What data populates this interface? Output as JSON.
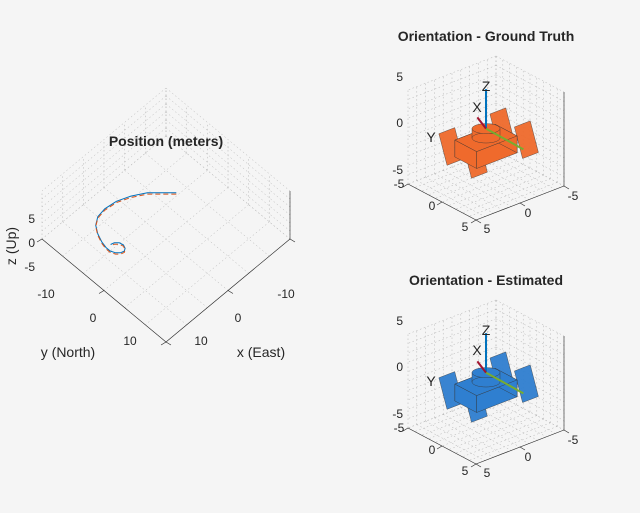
{
  "figure": {
    "background": "#f5f5f5"
  },
  "chart_data": [
    {
      "type": "line",
      "title": "Position (meters)",
      "xlabel": "x (East)",
      "ylabel": "y (North)",
      "zlabel": "z (Up)",
      "x_ticks": [
        "-10",
        "0",
        "10"
      ],
      "y_ticks": [
        "-10",
        "0",
        "10"
      ],
      "z_ticks": [
        "5",
        "0",
        "-5"
      ],
      "xlim": [
        -15,
        15
      ],
      "ylim": [
        -15,
        15
      ],
      "zlim": [
        -5,
        5
      ],
      "grid": true,
      "series": [
        {
          "color": "#0072bd",
          "style": "solid",
          "x": [
            -4.5,
            -3,
            -1,
            1.5,
            4,
            6.5,
            8.5,
            10,
            11,
            11.7,
            12,
            12,
            11.6,
            11,
            10.3,
            9.8,
            9.5,
            9.7,
            10.3,
            11
          ],
          "y": [
            -2,
            -3.5,
            -5.5,
            -7,
            -8,
            -8.3,
            -8,
            -7,
            -5.5,
            -3.8,
            -2.5,
            -1.5,
            -0.6,
            0,
            0.2,
            -0.1,
            -0.8,
            -1.6,
            -2.2,
            -2.4
          ],
          "z": [
            0,
            0,
            0,
            0,
            0,
            0,
            0,
            0,
            0,
            0,
            0,
            0,
            0,
            0,
            0,
            0,
            0,
            0,
            0,
            0
          ]
        },
        {
          "color": "#d95319",
          "style": "dashed",
          "x": [
            -4.3,
            -2.8,
            -0.8,
            1.7,
            4.2,
            6.7,
            8.7,
            10.2,
            11.2,
            11.9,
            12.2,
            12.2,
            11.8,
            11.2,
            10.5,
            10,
            9.7,
            9.9,
            10.5,
            11.2
          ],
          "y": [
            -1.8,
            -3.3,
            -5.3,
            -6.8,
            -7.8,
            -8.1,
            -7.8,
            -6.8,
            -5.3,
            -3.6,
            -2.3,
            -1.3,
            -0.4,
            0.2,
            0.4,
            0.1,
            -0.6,
            -1.4,
            -2,
            -2.2
          ],
          "z": [
            0,
            0,
            0,
            0,
            0,
            0,
            0,
            0,
            0,
            0,
            0,
            0,
            0,
            0,
            0,
            0,
            0,
            0,
            0,
            0
          ]
        }
      ]
    },
    {
      "type": "3d-orientation",
      "title": "Orientation - Ground Truth",
      "body_color": "#ef6a2c",
      "x_ticks": [
        "-5",
        "0",
        "5"
      ],
      "y_ticks": [
        "-5",
        "0",
        "5"
      ],
      "z_ticks": [
        "5",
        "0",
        "-5"
      ],
      "xlim": [
        -5,
        5
      ],
      "ylim": [
        -5,
        5
      ],
      "zlim": [
        -5,
        5
      ],
      "axis_labels": [
        "X",
        "Y",
        "Z"
      ],
      "axis_colors": {
        "X": "#a2142f",
        "Y": "#77ac30",
        "Z": "#0072bd"
      }
    },
    {
      "type": "3d-orientation",
      "title": "Orientation - Estimated",
      "body_color": "#2f7fd0",
      "x_ticks": [
        "-5",
        "0",
        "5"
      ],
      "y_ticks": [
        "-5",
        "0",
        "5"
      ],
      "z_ticks": [
        "5",
        "0",
        "-5"
      ],
      "xlim": [
        -5,
        5
      ],
      "ylim": [
        -5,
        5
      ],
      "zlim": [
        -5,
        5
      ],
      "axis_labels": [
        "X",
        "Y",
        "Z"
      ],
      "axis_colors": {
        "X": "#a2142f",
        "Y": "#77ac30",
        "Z": "#0072bd"
      }
    }
  ]
}
